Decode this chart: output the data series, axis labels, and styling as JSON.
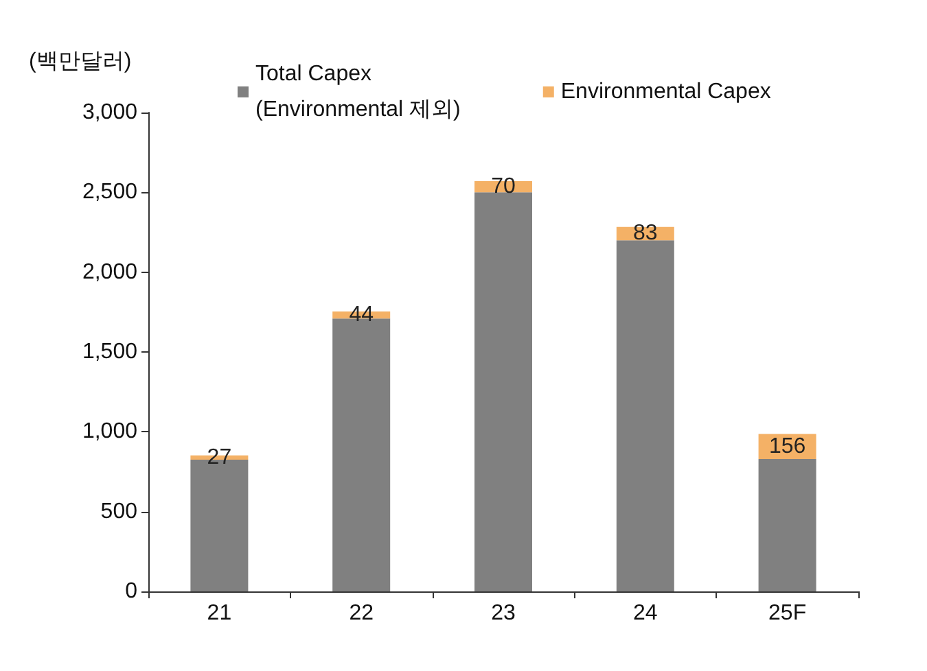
{
  "chart_data": {
    "type": "bar",
    "ylabel": "(백만달러)",
    "categories": [
      "21",
      "22",
      "23",
      "24",
      "25F"
    ],
    "stacked": true,
    "series": [
      {
        "name": "Total Capex\n(Environmental 제외)",
        "color": "#808080",
        "values": [
          825,
          1710,
          2500,
          2200,
          830
        ]
      },
      {
        "name": "Environmental Capex",
        "color": "#f4b166",
        "values": [
          27,
          44,
          70,
          83,
          156
        ],
        "value_labels": [
          "27",
          "44",
          "70",
          "83",
          "156"
        ]
      }
    ],
    "ylim": [
      0,
      3000
    ],
    "yticks": [
      {
        "value": 0,
        "label": "0"
      },
      {
        "value": 500,
        "label": "500"
      },
      {
        "value": 1000,
        "label": "1,000"
      },
      {
        "value": 1500,
        "label": "1,500"
      },
      {
        "value": 2000,
        "label": "2,000"
      },
      {
        "value": 2500,
        "label": "2,500"
      },
      {
        "value": 3000,
        "label": "3,000"
      }
    ],
    "grid": false,
    "legend": "top"
  }
}
